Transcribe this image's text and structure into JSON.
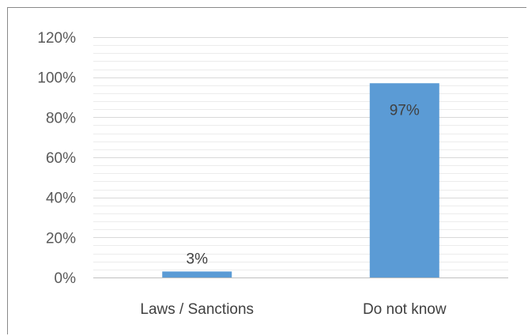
{
  "chart_data": {
    "type": "bar",
    "categories": [
      "Laws / Sanctions",
      "Do not know"
    ],
    "values": [
      3,
      97
    ],
    "data_labels": [
      "3%",
      "97%"
    ],
    "title": "",
    "xlabel": "",
    "ylabel": "",
    "ylim": [
      0,
      120
    ],
    "y_major_step": 20,
    "y_minor_step": 4,
    "y_tick_labels": [
      "0%",
      "20%",
      "40%",
      "60%",
      "80%",
      "100%",
      "120%"
    ],
    "grid": true,
    "legend": "none",
    "colors": {
      "bar": "#5b9bd5",
      "gridline_major": "#d9d9d9",
      "gridline_minor": "#ececec",
      "axis_line": "#bfbfbf",
      "frame_border": "#8a8a8a",
      "tick_text": "#595959",
      "label_text": "#404040"
    }
  }
}
